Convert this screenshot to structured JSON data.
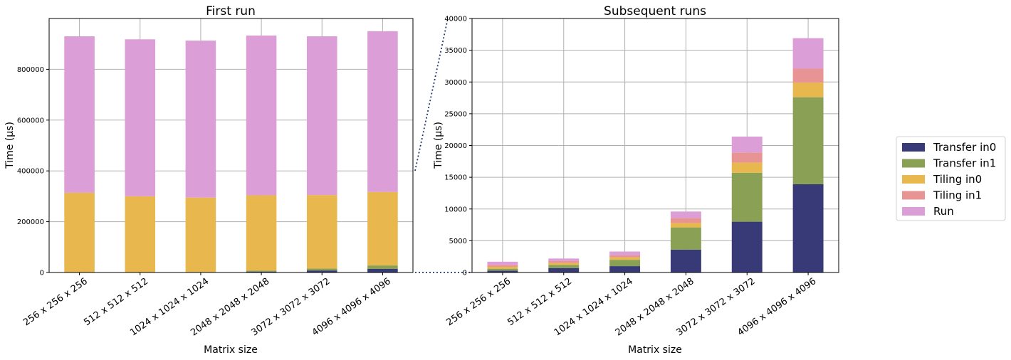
{
  "chart_data": [
    {
      "type": "bar",
      "stacked": true,
      "title": "First run",
      "xlabel": "Matrix size",
      "ylabel": "Time (µs)",
      "ylim": [
        0,
        1000000
      ],
      "yticks": [
        0,
        200000,
        400000,
        600000,
        800000
      ],
      "grid": true,
      "categories": [
        "256 x 256 x 256",
        "512 x 512 x 512",
        "1024 x 1024 x 1024",
        "2048 x 2048 x 2048",
        "3072 x 3072 x 3072",
        "4096 x 4096 x 4096"
      ],
      "series": [
        {
          "name": "Transfer in0",
          "color": "#383a78",
          "values": [
            300,
            700,
            1000,
            3600,
            8000,
            14000
          ]
        },
        {
          "name": "Transfer in1",
          "color": "#8aa055",
          "values": [
            300,
            700,
            1000,
            3500,
            7700,
            13700
          ]
        },
        {
          "name": "Tiling in0",
          "color": "#e8b84e",
          "values": [
            313400,
            298600,
            293000,
            296900,
            289300,
            289300
          ]
        },
        {
          "name": "Tiling in1",
          "color": "#e99494",
          "values": [
            0,
            0,
            0,
            0,
            0,
            0
          ]
        },
        {
          "name": "Run",
          "color": "#dc9ed6",
          "values": [
            616000,
            618000,
            618000,
            629000,
            625000,
            633000
          ]
        }
      ]
    },
    {
      "type": "bar",
      "stacked": true,
      "title": "Subsequent runs",
      "xlabel": "Matrix size",
      "ylabel": "Time (µs)",
      "ylim": [
        0,
        40000
      ],
      "yticks": [
        0,
        5000,
        10000,
        15000,
        20000,
        25000,
        30000,
        35000,
        40000
      ],
      "grid": true,
      "categories": [
        "256 x 256 x 256",
        "512 x 512 x 512",
        "1024 x 1024 x 1024",
        "2048 x 2048 x 2048",
        "3072 x 3072 x 3072",
        "4096 x 4096 x 4096"
      ],
      "series": [
        {
          "name": "Transfer in0",
          "color": "#383a78",
          "values": [
            300,
            700,
            1000,
            3600,
            8000,
            13900
          ]
        },
        {
          "name": "Transfer in1",
          "color": "#8aa055",
          "values": [
            300,
            500,
            1000,
            3500,
            7700,
            13700
          ]
        },
        {
          "name": "Tiling in0",
          "color": "#e8b84e",
          "values": [
            300,
            300,
            400,
            700,
            1600,
            2300
          ]
        },
        {
          "name": "Tiling in1",
          "color": "#e99494",
          "values": [
            300,
            300,
            300,
            800,
            1600,
            2200
          ]
        },
        {
          "name": "Run",
          "color": "#dc9ed6",
          "values": [
            500,
            400,
            600,
            1000,
            2500,
            4800
          ]
        }
      ]
    }
  ],
  "legend": {
    "position": "right",
    "items": [
      {
        "label": "Transfer in0",
        "color": "#383a78"
      },
      {
        "label": "Transfer in1",
        "color": "#8aa055"
      },
      {
        "label": "Tiling in0",
        "color": "#e8b84e"
      },
      {
        "label": "Tiling in1",
        "color": "#e99494"
      },
      {
        "label": "Run",
        "color": "#dc9ed6"
      }
    ]
  }
}
